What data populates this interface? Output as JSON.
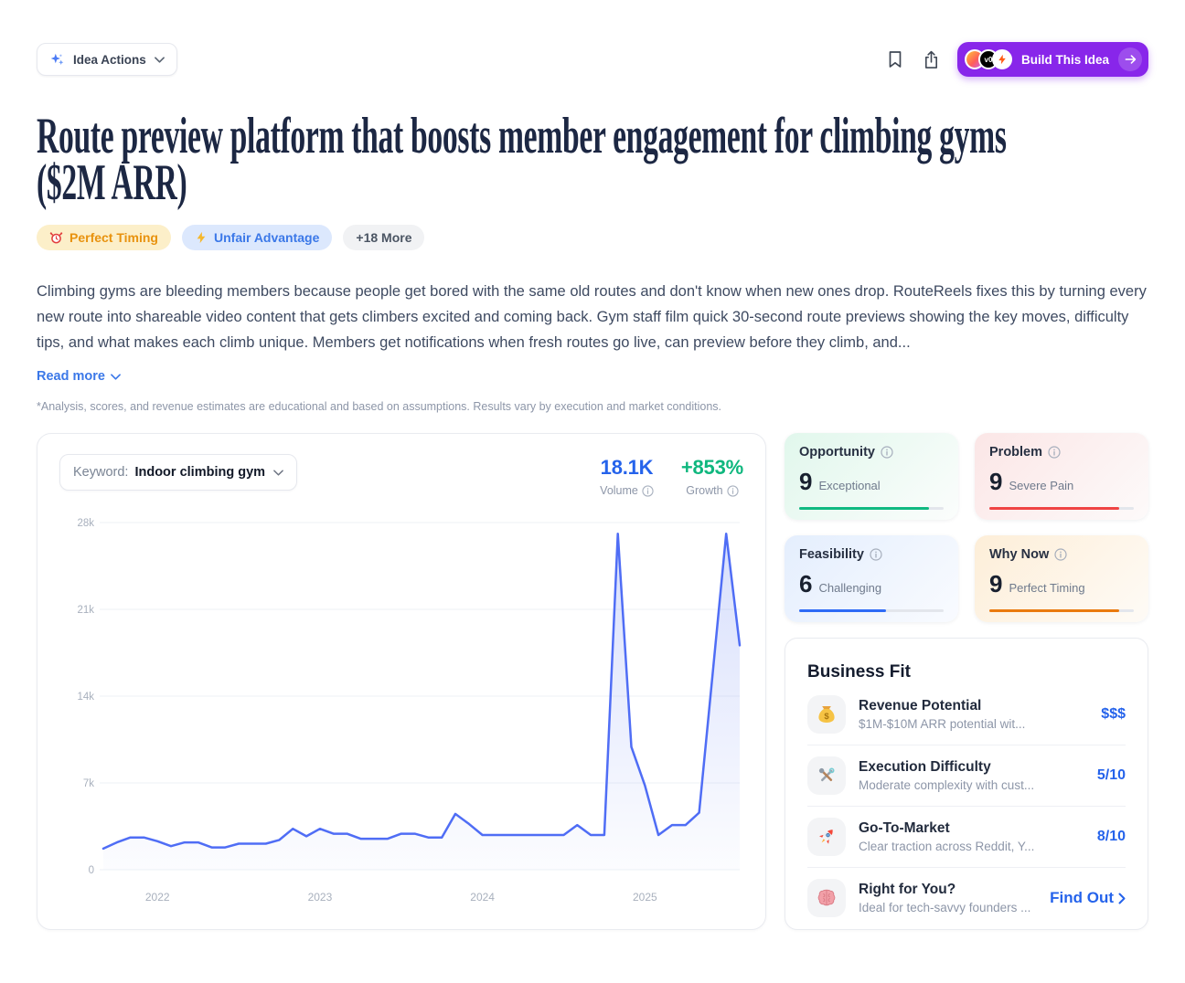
{
  "toolbar": {
    "idea_actions_label": "Idea Actions",
    "build_label": "Build This Idea",
    "build_avatars": [
      {
        "name": "lovable-logo"
      },
      {
        "name": "v0-logo",
        "label": "v0"
      },
      {
        "name": "bolt-logo"
      }
    ],
    "accent_purple": "#8826ea"
  },
  "header": {
    "title": "Route preview platform that boosts member engagement for climbing gyms ($2M ARR)",
    "title_lines": [
      "Route preview platform that boosts member engagement for climbing gyms",
      "($2M ARR)"
    ],
    "tags": [
      {
        "icon": "alarm-clock",
        "label": "Perfect Timing",
        "text_color": "#e8920e",
        "bg": "#fcefc9"
      },
      {
        "icon": "lightning",
        "label": "Unfair Advantage",
        "text_color": "#3b78e8",
        "bg": "#dce8fd"
      },
      {
        "icon": null,
        "label": "+18 More",
        "text_color": "#4b5563",
        "bg": "#f1f2f4"
      }
    ],
    "description": "Climbing gyms are bleeding members because people get bored with the same old routes and don't know when new ones drop. RouteReels fixes this by turning every new route into shareable video content that gets climbers excited and coming back. Gym staff film quick 30-second route previews showing the key moves, difficulty tips, and what makes each climb unique. Members get notifications when fresh routes go live, can preview before they climb, and...",
    "read_more_label": "Read more",
    "disclaimer": "*Analysis, scores, and revenue estimates are educational and based on assumptions. Results vary by execution and market conditions."
  },
  "keyword_panel": {
    "keyword_label": "Keyword:",
    "keyword_value": "Indoor climbing gym",
    "volume": {
      "value": "18.1K",
      "label": "Volume",
      "color": "#2563eb"
    },
    "growth": {
      "value": "+853%",
      "label": "Growth",
      "color": "#0fb77e"
    }
  },
  "chart_data": {
    "type": "area",
    "title": "Keyword search volume trend: Indoor climbing gym",
    "x_months": [
      "2021-09",
      "2021-10",
      "2021-11",
      "2021-12",
      "2022-01",
      "2022-02",
      "2022-03",
      "2022-04",
      "2022-05",
      "2022-06",
      "2022-07",
      "2022-08",
      "2022-09",
      "2022-10",
      "2022-11",
      "2022-12",
      "2023-01",
      "2023-02",
      "2023-03",
      "2023-04",
      "2023-05",
      "2023-06",
      "2023-07",
      "2023-08",
      "2023-09",
      "2023-10",
      "2023-11",
      "2023-12",
      "2024-01",
      "2024-02",
      "2024-03",
      "2024-04",
      "2024-05",
      "2024-06",
      "2024-07",
      "2024-08",
      "2024-09",
      "2024-10",
      "2024-11",
      "2024-12",
      "2025-01",
      "2025-02",
      "2025-03",
      "2025-04",
      "2025-05",
      "2025-06",
      "2025-07",
      "2025-08"
    ],
    "values": [
      1700,
      2200,
      2600,
      2600,
      2300,
      1900,
      2200,
      2200,
      1800,
      1800,
      2100,
      2100,
      2100,
      2400,
      3300,
      2700,
      3300,
      2900,
      2900,
      2500,
      2500,
      2500,
      2900,
      2900,
      2600,
      2600,
      4500,
      3700,
      2800,
      2800,
      2800,
      2800,
      2800,
      2800,
      2800,
      3600,
      2800,
      2800,
      27100,
      9900,
      6800,
      2800,
      3600,
      3600,
      4600,
      15800,
      27100,
      18100
    ],
    "ylim": [
      0,
      28000
    ],
    "yticks": [
      0,
      7000,
      14000,
      21000,
      28000
    ],
    "ytick_labels": [
      "0",
      "7k",
      "14k",
      "21k",
      "28k"
    ],
    "x_year_labels": [
      "2022",
      "2023",
      "2024",
      "2025"
    ],
    "line_color": "#4f6df5",
    "grid": true,
    "legend": "none"
  },
  "scores": [
    {
      "label": "Opportunity",
      "value": 9,
      "descriptor": "Exceptional",
      "bar_color": "#10b981",
      "bg_from": "#e1f7ec",
      "bg_to": "#fbfdfc"
    },
    {
      "label": "Problem",
      "value": 9,
      "descriptor": "Severe Pain",
      "bar_color": "#ef4444",
      "bg_from": "#fbe6e6",
      "bg_to": "#fdfafa"
    },
    {
      "label": "Feasibility",
      "value": 6,
      "descriptor": "Challenging",
      "bar_color": "#2e6bf6",
      "bg_from": "#e4eefd",
      "bg_to": "#f9fbff"
    },
    {
      "label": "Why Now",
      "value": 9,
      "descriptor": "Perfect Timing",
      "bar_color": "#ea7a0e",
      "bg_from": "#fdeed8",
      "bg_to": "#fefbf6"
    }
  ],
  "business_fit": {
    "title": "Business Fit",
    "rows": [
      {
        "icon": "money-bag",
        "name": "Revenue Potential",
        "subtitle": "$1M-$10M ARR potential wit...",
        "value": "$$$"
      },
      {
        "icon": "hammer-wrench",
        "name": "Execution Difficulty",
        "subtitle": "Moderate complexity with cust...",
        "value": "5/10"
      },
      {
        "icon": "rocket",
        "name": "Go-To-Market",
        "subtitle": "Clear traction across Reddit, Y...",
        "value": "8/10"
      },
      {
        "icon": "brain",
        "name": "Right for You?",
        "subtitle": "Ideal for tech-savvy founders ...",
        "value": "Find Out"
      }
    ]
  }
}
